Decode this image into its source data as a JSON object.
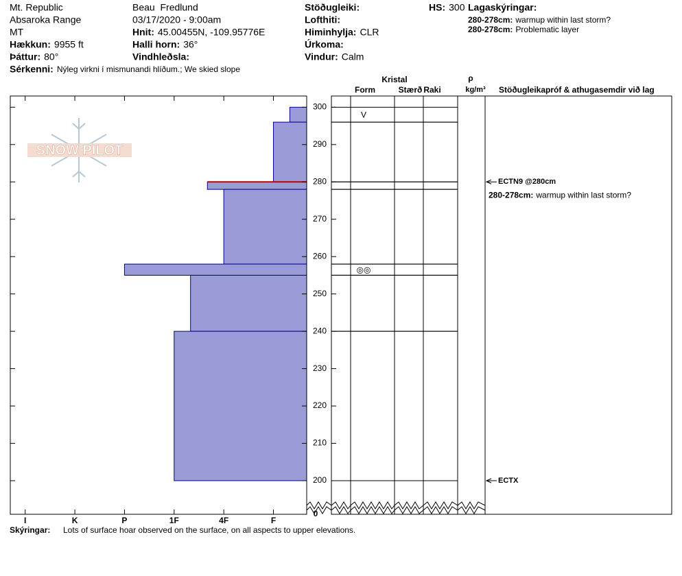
{
  "header": {
    "site": "Mt. Republic",
    "range": "Absaroka Range",
    "state": "MT",
    "observer": "Beau  Fredlund",
    "datetime": "03/17/2020 - 9:00am",
    "fields": [
      {
        "label": "Hækkun:",
        "value": "9955 ft"
      },
      {
        "label": "Þáttur:",
        "value": "80°"
      },
      {
        "label": "Sérkenni:",
        "value": "Nýleg virkni í mismunandi hlíðum.; We skied slope"
      },
      {
        "label": "Hnit:",
        "value": "45.00455N, -109.95776E"
      },
      {
        "label": "Halli horn:",
        "value": "36°"
      },
      {
        "label": "Vindhleðsla:"
      },
      {
        "label": "Stöðugleiki:"
      },
      {
        "label": "Lofthiti:"
      },
      {
        "label": "Himinhylja:",
        "value": "CLR"
      },
      {
        "label": "Úrkoma:"
      },
      {
        "label": "Vindur:",
        "value": "Calm"
      },
      {
        "label": "HS:",
        "value": "300"
      }
    ],
    "layer_notes": {
      "title": "Lagaskýringar:",
      "items": [
        {
          "label": "280-278cm:",
          "value": "warmup within last storm?"
        },
        {
          "label": "280-278cm:",
          "value": "Problematic layer"
        }
      ]
    }
  },
  "logo": "SNOW PILOT",
  "chart_data": {
    "type": "snow-profile",
    "ylim": [
      200,
      303
    ],
    "yticks": [
      200,
      210,
      220,
      230,
      240,
      250,
      260,
      270,
      280,
      290,
      300
    ],
    "ybreak": 0,
    "xlim": [
      6.3,
      0.33
    ],
    "xticks": [
      {
        "value": 6,
        "label": "I"
      },
      {
        "value": 5,
        "label": "K"
      },
      {
        "value": 4,
        "label": "P"
      },
      {
        "value": 3,
        "label": "1F"
      },
      {
        "value": 2,
        "label": "4F"
      },
      {
        "value": 1,
        "label": "F"
      }
    ],
    "color": "#9b9bd7",
    "layers": [
      {
        "top": 300,
        "bottom": 296,
        "hardness": 0.67,
        "form": "V"
      },
      {
        "top": 296,
        "bottom": 280,
        "hardness": 1
      },
      {
        "top": 280,
        "bottom": 278,
        "hardness": 2.33
      },
      {
        "top": 278,
        "bottom": 258,
        "hardness": 2
      },
      {
        "top": 258,
        "bottom": 255,
        "hardness": 4,
        "form": "◎◎"
      },
      {
        "top": 255,
        "bottom": 240,
        "hardness": 2.67
      },
      {
        "top": 240,
        "bottom": 200,
        "hardness": 3
      }
    ],
    "problem_layer": {
      "height": 280,
      "color": "#c00000"
    },
    "crystal_header": "Kristal",
    "columns": [
      "Form",
      "Stærð",
      "Raki"
    ],
    "density_symbol": "ρ",
    "density_unit": "kg/m³",
    "comments_header": "Stöðugleikapróf & athugasemdir við lag",
    "tests": [
      {
        "height": 280,
        "label": "ECTN9 @280cm"
      },
      {
        "height": 200,
        "label": "ECTX"
      }
    ],
    "comment": {
      "label": "280-278cm:",
      "text": "warmup within last storm?"
    }
  },
  "footer": {
    "label": "Skýringar:",
    "text": "Lots of surface hoar observed on the surface, on all aspects to upper elevations."
  }
}
